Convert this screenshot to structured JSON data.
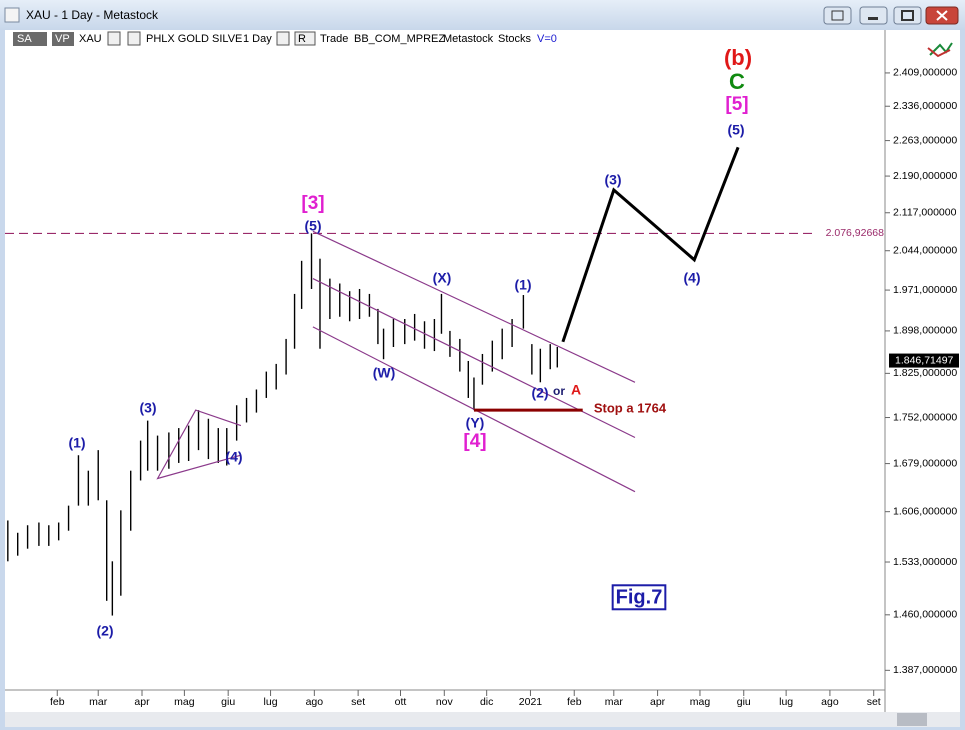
{
  "window": {
    "title": "XAU - 1 Day - Metastock"
  },
  "toolbar": {
    "items": [
      "SA",
      "VP",
      "XAU",
      "PHLX GOLD SILVE",
      "1 Day",
      "R",
      "Trade",
      "BB_COM_MPREZ",
      "Metastock",
      "Stocks",
      "V=0"
    ]
  },
  "chart_data": {
    "type": "ohlc",
    "log_scale": true,
    "color": "#000000",
    "x": [
      -4,
      3,
      10,
      18,
      25,
      32,
      39,
      46,
      53,
      60,
      66,
      70,
      76,
      83,
      90,
      95,
      102,
      110,
      117,
      124,
      131,
      138,
      145,
      151,
      158,
      165,
      172,
      179,
      186,
      193,
      199,
      204,
      211,
      217,
      224,
      231,
      238,
      245,
      252,
      258,
      262,
      269,
      277,
      284,
      291,
      298,
      303,
      309,
      316,
      322,
      326,
      332,
      339,
      346,
      353,
      361,
      367,
      373,
      380,
      385
    ],
    "high": [
      1593,
      1575,
      1586,
      1590,
      1586,
      1590,
      1615,
      1692,
      1668,
      1700,
      1623,
      1534,
      1608,
      1668,
      1715,
      1747,
      1723,
      1728,
      1735,
      1739,
      1764,
      1750,
      1735,
      1735,
      1772,
      1784,
      1798,
      1828,
      1841,
      1884,
      1964,
      2025,
      2077,
      2029,
      1992,
      1983,
      1969,
      1973,
      1964,
      1937,
      1902,
      1919,
      1919,
      1928,
      1915,
      1919,
      1964,
      1898,
      1884,
      1846,
      1818,
      1858,
      1881,
      1902,
      1919,
      1962,
      1875,
      1867,
      1875,
      1870
    ],
    "low": [
      1534,
      1542,
      1552,
      1556,
      1556,
      1564,
      1578,
      1615,
      1615,
      1623,
      1479,
      1459,
      1486,
      1578,
      1653,
      1668,
      1668,
      1671,
      1680,
      1683,
      1700,
      1686,
      1680,
      1676,
      1715,
      1744,
      1760,
      1784,
      1798,
      1823,
      1867,
      1937,
      1973,
      1867,
      1919,
      1923,
      1915,
      1919,
      1923,
      1875,
      1849,
      1870,
      1875,
      1881,
      1867,
      1863,
      1893,
      1853,
      1828,
      1784,
      1764,
      1806,
      1828,
      1849,
      1870,
      1902,
      1823,
      1810,
      1832,
      1835
    ],
    "xlim": [
      -6,
      617
    ],
    "ylim": [
      1362,
      2472
    ],
    "xticks": [
      {
        "value": 31,
        "label": "feb"
      },
      {
        "value": 60,
        "label": "mar"
      },
      {
        "value": 91,
        "label": "apr"
      },
      {
        "value": 121,
        "label": "mag"
      },
      {
        "value": 152,
        "label": "giu"
      },
      {
        "value": 182,
        "label": "lug"
      },
      {
        "value": 213,
        "label": "ago"
      },
      {
        "value": 244,
        "label": "set"
      },
      {
        "value": 274,
        "label": "ott"
      },
      {
        "value": 305,
        "label": "nov"
      },
      {
        "value": 335,
        "label": "dic"
      },
      {
        "value": 366,
        "label": "2021"
      },
      {
        "value": 397,
        "label": "feb"
      },
      {
        "value": 425,
        "label": "mar"
      },
      {
        "value": 456,
        "label": "apr"
      },
      {
        "value": 486,
        "label": "mag"
      },
      {
        "value": 517,
        "label": "giu"
      },
      {
        "value": 547,
        "label": "lug"
      },
      {
        "value": 578,
        "label": "ago"
      },
      {
        "value": 609,
        "label": "set"
      }
    ],
    "yticks": [
      {
        "value": 2409,
        "label": "2.409,000000"
      },
      {
        "value": 2336,
        "label": "2.336,000000"
      },
      {
        "value": 2263,
        "label": "2.263,000000"
      },
      {
        "value": 2190,
        "label": "2.190,000000"
      },
      {
        "value": 2117,
        "label": "2.117,000000"
      },
      {
        "value": 2044,
        "label": "2.044,000000"
      },
      {
        "value": 1971,
        "label": "1.971,000000"
      },
      {
        "value": 1898,
        "label": "1.898,000000"
      },
      {
        "value": 1825,
        "label": "1.825,000000"
      },
      {
        "value": 1752,
        "label": "1.752,000000"
      },
      {
        "value": 1679,
        "label": "1.679,000000"
      },
      {
        "value": 1606,
        "label": "1.606,000000"
      },
      {
        "value": 1533,
        "label": "1.533,000000"
      },
      {
        "value": 1460,
        "label": "1.460,000000"
      },
      {
        "value": 1387,
        "label": "1.387,000000"
      }
    ],
    "reference": {
      "value": 2076.92668,
      "label": "2.076,92668",
      "color": "#9a2a6a"
    },
    "last_price": {
      "value": 1846.71497,
      "label": "1.846,71497"
    },
    "overlays": [
      {
        "x": [
          212,
          440
        ],
        "values": [
          2081,
          1810
        ],
        "color": "#8b3a8b"
      },
      {
        "x": [
          212,
          440
        ],
        "values": [
          1992,
          1720
        ],
        "color": "#8b3a8b"
      },
      {
        "x": [
          212,
          440
        ],
        "values": [
          1905,
          1636
        ],
        "color": "#8b3a8b"
      },
      {
        "x": [
          161,
          129,
          102,
          161
        ],
        "values": [
          1739,
          1764,
          1656,
          1692
        ],
        "color": "#8b3a8b"
      },
      {
        "x": [
          326,
          403
        ],
        "values": [
          1764,
          1764
        ],
        "color": "#8b0000"
      },
      {
        "x": [
          389,
          425,
          482,
          513
        ],
        "values": [
          1879,
          2162,
          2027,
          2249
        ],
        "color": "#000000"
      }
    ],
    "annotations": [
      {
        "text": "(1)",
        "color": "#1c1ca8"
      },
      {
        "text": "(2)",
        "color": "#1c1ca8"
      },
      {
        "text": "(3)",
        "color": "#1c1ca8"
      },
      {
        "text": "(4)",
        "color": "#1c1ca8"
      },
      {
        "text": "[3]",
        "color": "#e020d0"
      },
      {
        "text": "(5)",
        "color": "#1c1ca8"
      },
      {
        "text": "(W)",
        "color": "#1c1ca8"
      },
      {
        "text": "(X)",
        "color": "#1c1ca8"
      },
      {
        "text": "(Y)",
        "color": "#1c1ca8"
      },
      {
        "text": "[4]",
        "color": "#e020d0"
      },
      {
        "text": "(1)",
        "color": "#1c1ca8"
      },
      {
        "text": "(2)",
        "color": "#1c1ca8"
      },
      {
        "text": "or",
        "color": "#1c1c70"
      },
      {
        "text": "A",
        "color": "#e01818"
      },
      {
        "text": "Stop a 1764",
        "color": "#a01010"
      },
      {
        "text": "(3)",
        "color": "#1c1ca8"
      },
      {
        "text": "(4)",
        "color": "#1c1ca8"
      },
      {
        "text": "(5)",
        "color": "#1c1ca8"
      },
      {
        "text": "[5]",
        "color": "#e020d0"
      },
      {
        "text": "C",
        "color": "#108a10"
      },
      {
        "text": "(b)",
        "color": "#e01818"
      },
      {
        "text": "Fig.7",
        "color": "#1c1ca8"
      }
    ]
  }
}
